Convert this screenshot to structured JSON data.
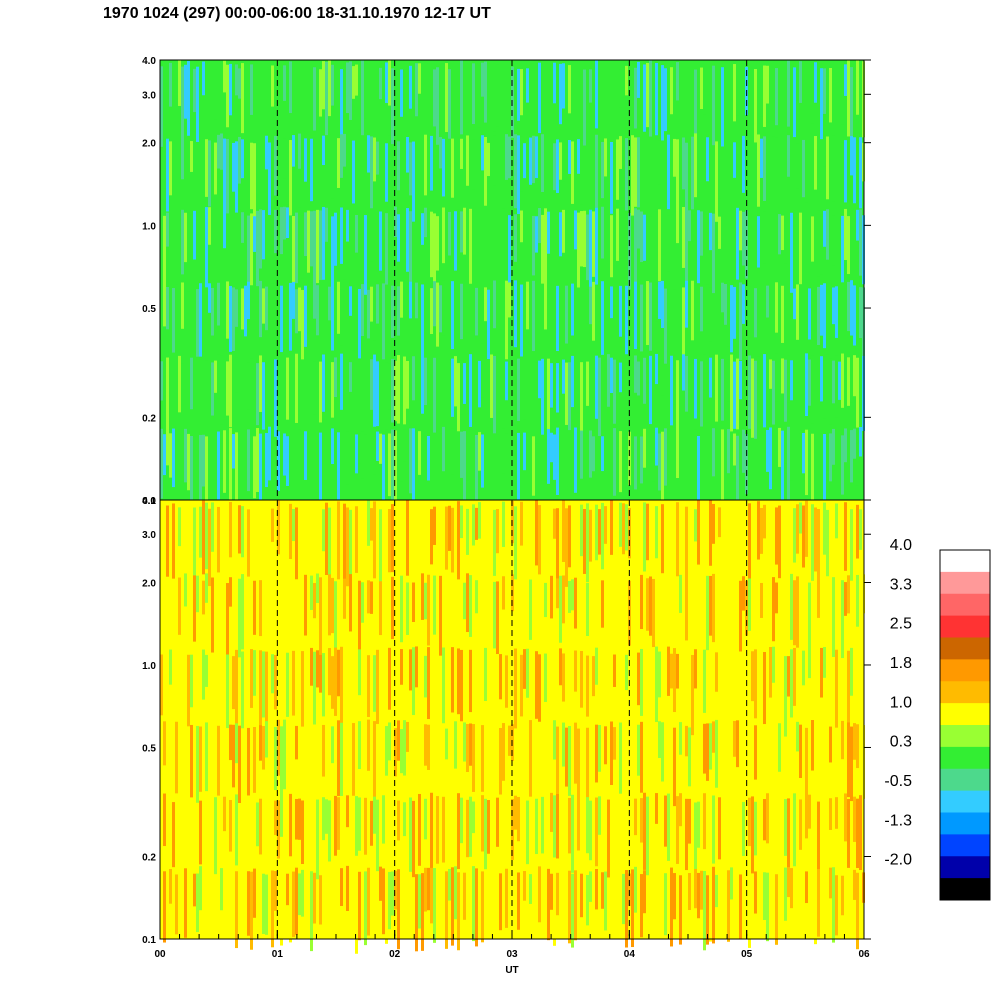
{
  "title": "1970 1024 (297) 00:00-06:00 18-31.10.1970  12-17 UT",
  "chart_data": {
    "type": "heatmap",
    "panels": [
      {
        "name": "upper",
        "y_ticks": [
          "4.0",
          "3.0",
          "2.0",
          "1.0",
          "0.5",
          "0.2",
          "0.1"
        ],
        "y_values": [
          4.0,
          3.0,
          2.0,
          1.0,
          0.5,
          0.2,
          0.1
        ],
        "ylim": [
          0.1,
          4.0
        ],
        "yscale": "log",
        "dominant_colors": [
          "#33ee33",
          "#99ff33",
          "#4dd98c",
          "#33ccff"
        ]
      },
      {
        "name": "lower",
        "y_ticks": [
          "4.0",
          "3.0",
          "2.0",
          "1.0",
          "0.5",
          "0.2",
          "0.1"
        ],
        "y_values": [
          4.0,
          3.0,
          2.0,
          1.0,
          0.5,
          0.2,
          0.1
        ],
        "ylim": [
          0.1,
          4.0
        ],
        "yscale": "log",
        "dominant_colors": [
          "#ffff00",
          "#ffbb00",
          "#ff9900",
          "#99ff33"
        ]
      }
    ],
    "x_ticks": [
      "00",
      "01",
      "02",
      "03",
      "04",
      "05",
      "06"
    ],
    "x_values": [
      0,
      1,
      2,
      3,
      4,
      5,
      6
    ],
    "xlim": [
      0,
      6
    ],
    "xlabel": "UT",
    "dashed_lines_at": [
      1,
      2,
      3,
      4,
      5
    ],
    "colorbar": {
      "labels": [
        "4.0",
        "3.3",
        "2.5",
        "1.8",
        "1.0",
        "0.3",
        "-0.5",
        "-1.3",
        "-2.0"
      ],
      "colors_top_to_bottom": [
        "#ffffff",
        "#ff9999",
        "#ff6666",
        "#ff3333",
        "#cc6600",
        "#ff9900",
        "#ffbb00",
        "#ffff00",
        "#99ff33",
        "#33ee33",
        "#4dd98c",
        "#33ccff",
        "#0099ff",
        "#0044ff",
        "#0000aa",
        "#000000"
      ]
    }
  }
}
